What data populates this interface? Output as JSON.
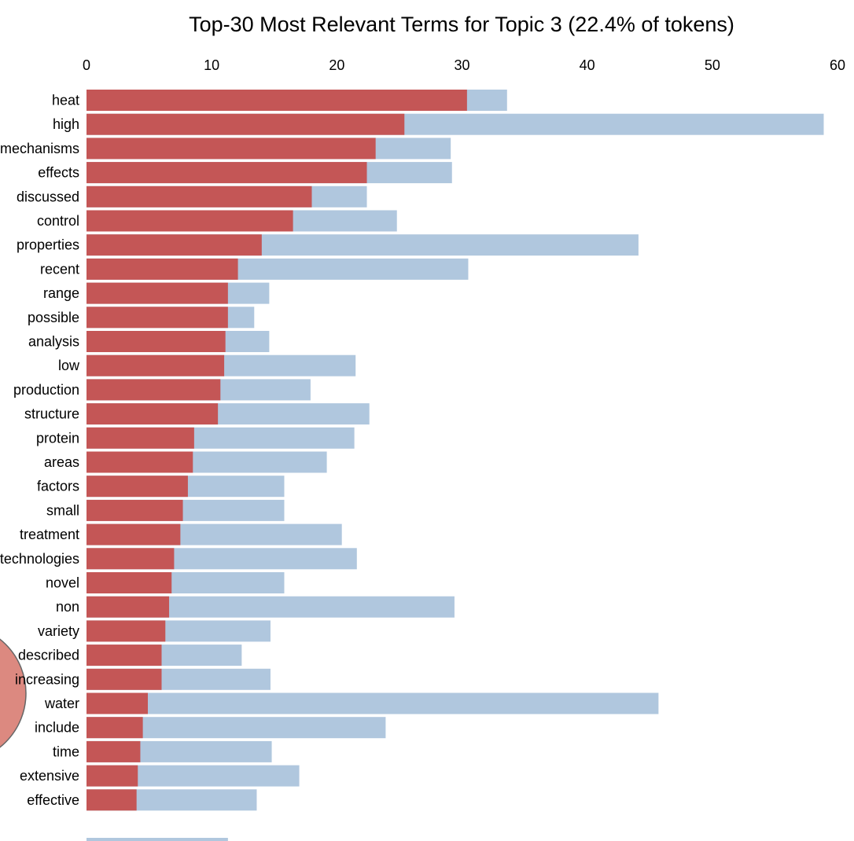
{
  "chart_data": {
    "type": "bar",
    "orientation": "horizontal",
    "title": "Top-30 Most Relevant Terms for Topic 3 (22.4% of tokens)",
    "xlim": [
      0,
      60
    ],
    "x_ticks": [
      0,
      10,
      20,
      30,
      40,
      50,
      60
    ],
    "x_axis_position": "top",
    "grid": false,
    "colors": {
      "topic": "#c45656",
      "overall": "#b0c7de",
      "circle": "#dc8980"
    },
    "categories": [
      "heat",
      "high",
      "mechanisms",
      "effects",
      "discussed",
      "control",
      "properties",
      "recent",
      "range",
      "possible",
      "analysis",
      "low",
      "production",
      "structure",
      "protein",
      "areas",
      "factors",
      "small",
      "treatment",
      "technologies",
      "novel",
      "non",
      "variety",
      "described",
      "increasing",
      "water",
      "include",
      "time",
      "extensive",
      "effective"
    ],
    "series": [
      {
        "name": "",
        "values": [
          30.4,
          25.4,
          23.1,
          22.4,
          18.0,
          16.5,
          14.0,
          12.1,
          11.3,
          11.3,
          11.1,
          11.0,
          10.7,
          10.5,
          8.6,
          8.5,
          8.1,
          7.7,
          7.5,
          7.0,
          6.8,
          6.6,
          6.3,
          6.0,
          6.0,
          4.9,
          4.5,
          4.3,
          4.1,
          4.0
        ]
      },
      {
        "name": "",
        "values": [
          33.6,
          58.9,
          29.1,
          29.2,
          22.4,
          24.8,
          44.1,
          30.5,
          14.6,
          13.4,
          14.6,
          21.5,
          17.9,
          22.6,
          21.4,
          19.2,
          15.8,
          15.8,
          20.4,
          21.6,
          15.8,
          29.4,
          14.7,
          12.4,
          14.7,
          45.7,
          23.9,
          14.8,
          17.0,
          13.6
        ]
      }
    ],
    "partial_bar_value": 11.3
  }
}
